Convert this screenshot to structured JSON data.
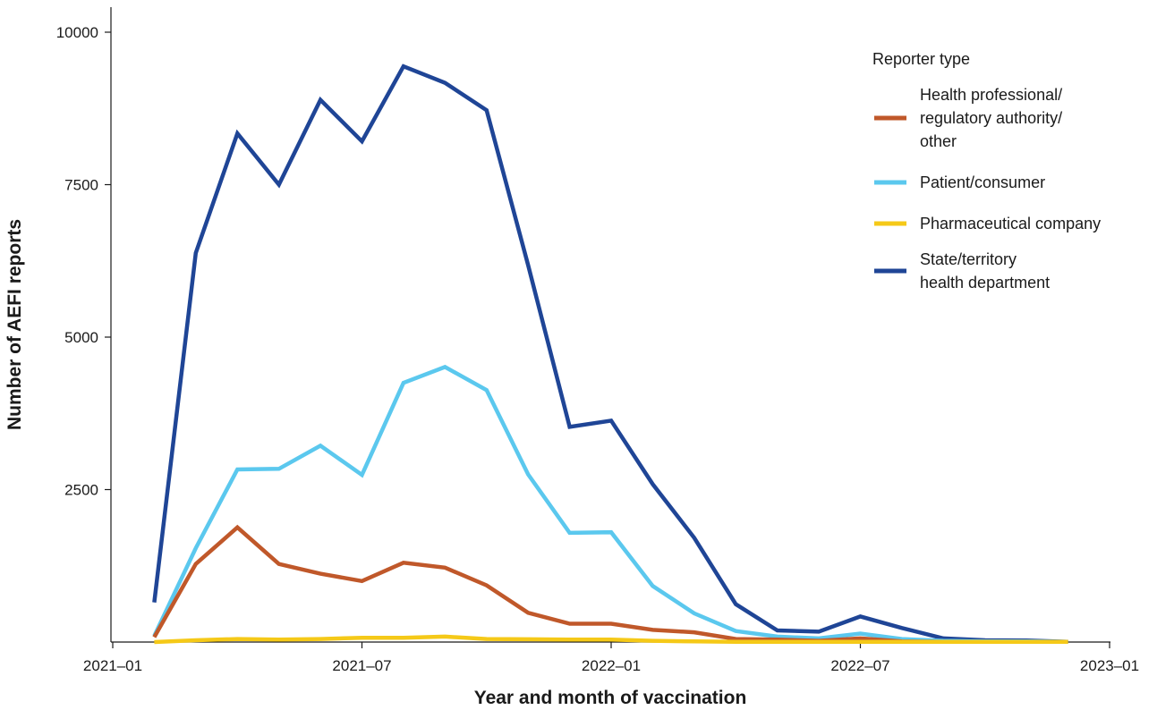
{
  "chart_data": {
    "type": "line",
    "xlabel": "Year and month of vaccination",
    "ylabel": "Number of AEFI reports",
    "x": [
      "2021-02",
      "2021-03",
      "2021-04",
      "2021-05",
      "2021-06",
      "2021-07",
      "2021-08",
      "2021-09",
      "2021-10",
      "2021-11",
      "2021-12",
      "2022-01",
      "2022-02",
      "2022-03",
      "2022-04",
      "2022-05",
      "2022-06",
      "2022-07",
      "2022-08",
      "2022-09",
      "2022-10",
      "2022-11",
      "2022-12"
    ],
    "x_ticks": [
      "2021-01",
      "2021-07",
      "2022-01",
      "2022-07",
      "2023-01"
    ],
    "x_tick_labels": [
      "2021–01",
      "2021–07",
      "2022–01",
      "2022–07",
      "2023–01"
    ],
    "xlim": [
      "2021-01",
      "2023-01"
    ],
    "ylim": [
      0,
      10400
    ],
    "y_ticks": [
      2500,
      5000,
      7500,
      10000
    ],
    "y_tick_labels": [
      "2500",
      "5000",
      "7500",
      "10000"
    ],
    "grid": false,
    "legend": {
      "title": "Reporter type",
      "position": "right"
    },
    "series": [
      {
        "name": "Health professional/ regulatory authority/ other",
        "name_lines": [
          "Health professional/",
          "regulatory authority/",
          "other"
        ],
        "color": "#c0582a",
        "values": [
          80,
          1280,
          1880,
          1280,
          1120,
          1000,
          1300,
          1220,
          930,
          480,
          300,
          300,
          200,
          160,
          50,
          40,
          20,
          60,
          10,
          5,
          5,
          5,
          5
        ]
      },
      {
        "name": "Patient/consumer",
        "name_lines": [
          "Patient/consumer"
        ],
        "color": "#5bc8ee",
        "values": [
          100,
          1540,
          2830,
          2840,
          3220,
          2740,
          4250,
          4510,
          4130,
          2750,
          1790,
          1800,
          920,
          470,
          180,
          90,
          60,
          140,
          50,
          20,
          10,
          10,
          5
        ]
      },
      {
        "name": "Pharmaceutical company",
        "name_lines": [
          "Pharmaceutical company"
        ],
        "color": "#f5c918",
        "values": [
          0,
          30,
          50,
          40,
          50,
          70,
          70,
          90,
          50,
          45,
          40,
          40,
          20,
          10,
          5,
          5,
          5,
          5,
          5,
          5,
          5,
          5,
          5
        ]
      },
      {
        "name": "State/territory health department",
        "name_lines": [
          "State/territory",
          "health department"
        ],
        "color": "#1f4596",
        "values": [
          650,
          6380,
          8340,
          7500,
          8890,
          8210,
          9440,
          9170,
          8720,
          6180,
          3530,
          3630,
          2590,
          1710,
          620,
          190,
          170,
          420,
          230,
          60,
          30,
          25,
          5
        ]
      }
    ]
  }
}
